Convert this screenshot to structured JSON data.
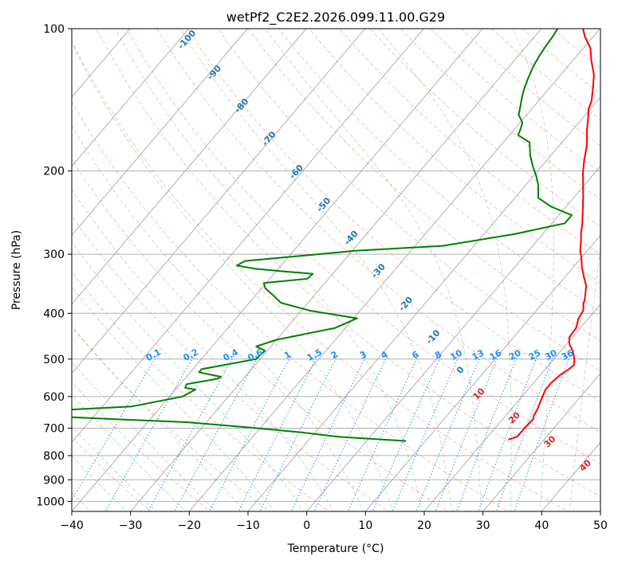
{
  "chart_data": {
    "type": "line",
    "title": "wetPf2_C2E2.2026.099.11.00.G29",
    "xlabel": "Temperature (°C)",
    "ylabel": "Pressure (hPa)",
    "xlim": [
      -40,
      50
    ],
    "ylim": [
      1050,
      100
    ],
    "x_ticks": [
      -40,
      -30,
      -20,
      -10,
      0,
      10,
      20,
      30,
      40,
      50
    ],
    "x_tick_labels": [
      "−40",
      "−30",
      "−20",
      "−10",
      "0",
      "10",
      "20",
      "30",
      "40",
      "50"
    ],
    "y_ticks": [
      1000,
      900,
      800,
      700,
      600,
      500,
      400,
      300,
      200,
      100
    ],
    "y_tick_labels": [
      "1000",
      "900",
      "800",
      "700",
      "600",
      "500",
      "400",
      "300",
      "200",
      "100"
    ],
    "series": [
      {
        "name": "Temperature",
        "color": "#ff0000",
        "points": [
          [
            23.9,
            740
          ],
          [
            25.0,
            730
          ],
          [
            25.0,
            700
          ],
          [
            25.2,
            670
          ],
          [
            24.8,
            660
          ],
          [
            24.5,
            640
          ],
          [
            24.0,
            620
          ],
          [
            23.5,
            600
          ],
          [
            23.0,
            580
          ],
          [
            23.0,
            560
          ],
          [
            23.4,
            540
          ],
          [
            24.0,
            525
          ],
          [
            24.3,
            515
          ],
          [
            23.5,
            500
          ],
          [
            22.0,
            480
          ],
          [
            20.5,
            465
          ],
          [
            19.5,
            450
          ],
          [
            19.3,
            430
          ],
          [
            18.3,
            410
          ],
          [
            18.0,
            395
          ],
          [
            17.5,
            388
          ],
          [
            17.0,
            382
          ],
          [
            16.7,
            375
          ],
          [
            16.0,
            365
          ],
          [
            14.9,
            350
          ],
          [
            13.2,
            335
          ],
          [
            11.5,
            320
          ],
          [
            10.0,
            305
          ],
          [
            8.8,
            295
          ],
          [
            7.4,
            280
          ],
          [
            6.3,
            270
          ],
          [
            5.4,
            260
          ],
          [
            3.7,
            245
          ],
          [
            1.9,
            230
          ],
          [
            -0.1,
            215
          ],
          [
            -2.0,
            202
          ],
          [
            -3.6,
            190
          ],
          [
            -5.4,
            176
          ],
          [
            -7.5,
            164
          ],
          [
            -9.0,
            155
          ],
          [
            -10.3,
            148
          ],
          [
            -11.0,
            142
          ],
          [
            -12.9,
            132
          ],
          [
            -14.4,
            125
          ],
          [
            -16.8,
            117
          ],
          [
            -18.8,
            110
          ],
          [
            -21.4,
            104
          ],
          [
            -22.9,
            100
          ]
        ]
      },
      {
        "name": "Dewpoint",
        "color": "#008000",
        "points": [
          [
            6.7,
            745
          ],
          [
            2.5,
            740
          ],
          [
            -5.5,
            730
          ],
          [
            -12.0,
            715
          ],
          [
            -20.5,
            700
          ],
          [
            -33.3,
            680
          ],
          [
            -45.9,
            670
          ],
          [
            -58.3,
            660
          ],
          [
            -63.0,
            650
          ],
          [
            -55.5,
            640
          ],
          [
            -45.0,
            630
          ],
          [
            -37.8,
            600
          ],
          [
            -36.6,
            580
          ],
          [
            -38.6,
            575
          ],
          [
            -38.9,
            565
          ],
          [
            -34.4,
            550
          ],
          [
            -34.1,
            545
          ],
          [
            -38.5,
            533
          ],
          [
            -38.5,
            525
          ],
          [
            -30.7,
            500
          ],
          [
            -30.4,
            480
          ],
          [
            -32.5,
            470
          ],
          [
            -30.0,
            455
          ],
          [
            -21.8,
            430
          ],
          [
            -19.4,
            410
          ],
          [
            -28.5,
            395
          ],
          [
            -34.6,
            380
          ],
          [
            -37.1,
            366
          ],
          [
            -39.4,
            354
          ],
          [
            -40.4,
            345
          ],
          [
            -33.6,
            338
          ],
          [
            -33.4,
            330
          ],
          [
            -38.8,
            326
          ],
          [
            -43.9,
            322
          ],
          [
            -47.5,
            317
          ],
          [
            -46.8,
            310
          ],
          [
            -41.0,
            305
          ],
          [
            -29.5,
            295
          ],
          [
            -15.3,
            288
          ],
          [
            -4.8,
            272
          ],
          [
            2.2,
            258
          ],
          [
            2.2,
            248
          ],
          [
            -2.5,
            238
          ],
          [
            -6.0,
            228
          ],
          [
            -6.8,
            222
          ],
          [
            -7.9,
            214
          ],
          [
            -9.5,
            205
          ],
          [
            -11.4,
            196
          ],
          [
            -13.6,
            185
          ],
          [
            -15.5,
            174
          ],
          [
            -18.5,
            168
          ],
          [
            -19.0,
            163
          ],
          [
            -19.6,
            158
          ],
          [
            -21.4,
            152
          ],
          [
            -22.3,
            146
          ],
          [
            -23.3,
            140
          ],
          [
            -24.2,
            134
          ],
          [
            -25.1,
            127
          ],
          [
            -25.9,
            120
          ],
          [
            -26.4,
            114
          ],
          [
            -26.7,
            109
          ],
          [
            -26.9,
            104
          ],
          [
            -27.2,
            100
          ]
        ]
      }
    ],
    "background_lines": [
      {
        "name": "isotherms",
        "style": "solid",
        "color": "#9e9e9e"
      },
      {
        "name": "dry adiabats",
        "style": "dashed",
        "color": "#fa8072"
      },
      {
        "name": "moist adiabats",
        "style": "dashed",
        "color": "#4caf50"
      },
      {
        "name": "mixing ratio",
        "style": "dotted",
        "color": "#1e90ff"
      }
    ],
    "mixing_ratio_values": [
      0.1,
      0.2,
      0.4,
      0.6,
      1,
      1.5,
      2,
      3,
      4,
      6,
      8,
      10,
      13,
      16,
      20,
      25,
      30,
      36
    ],
    "mixing_ratio_labels": [
      "0.1",
      "0.2",
      "0.4",
      "0.6",
      "1",
      "1.5",
      "2",
      "3",
      "4",
      "6",
      "8",
      "10",
      "13",
      "16",
      "20",
      "25",
      "30",
      "36"
    ],
    "dry_adiabat_labels": [
      "-100",
      "-90",
      "-80",
      "-70",
      "-60",
      "-50",
      "-40",
      "-30",
      "-20",
      "-10",
      "0"
    ],
    "moist_adiabat_labels": [
      "10",
      "20",
      "30",
      "40"
    ]
  }
}
